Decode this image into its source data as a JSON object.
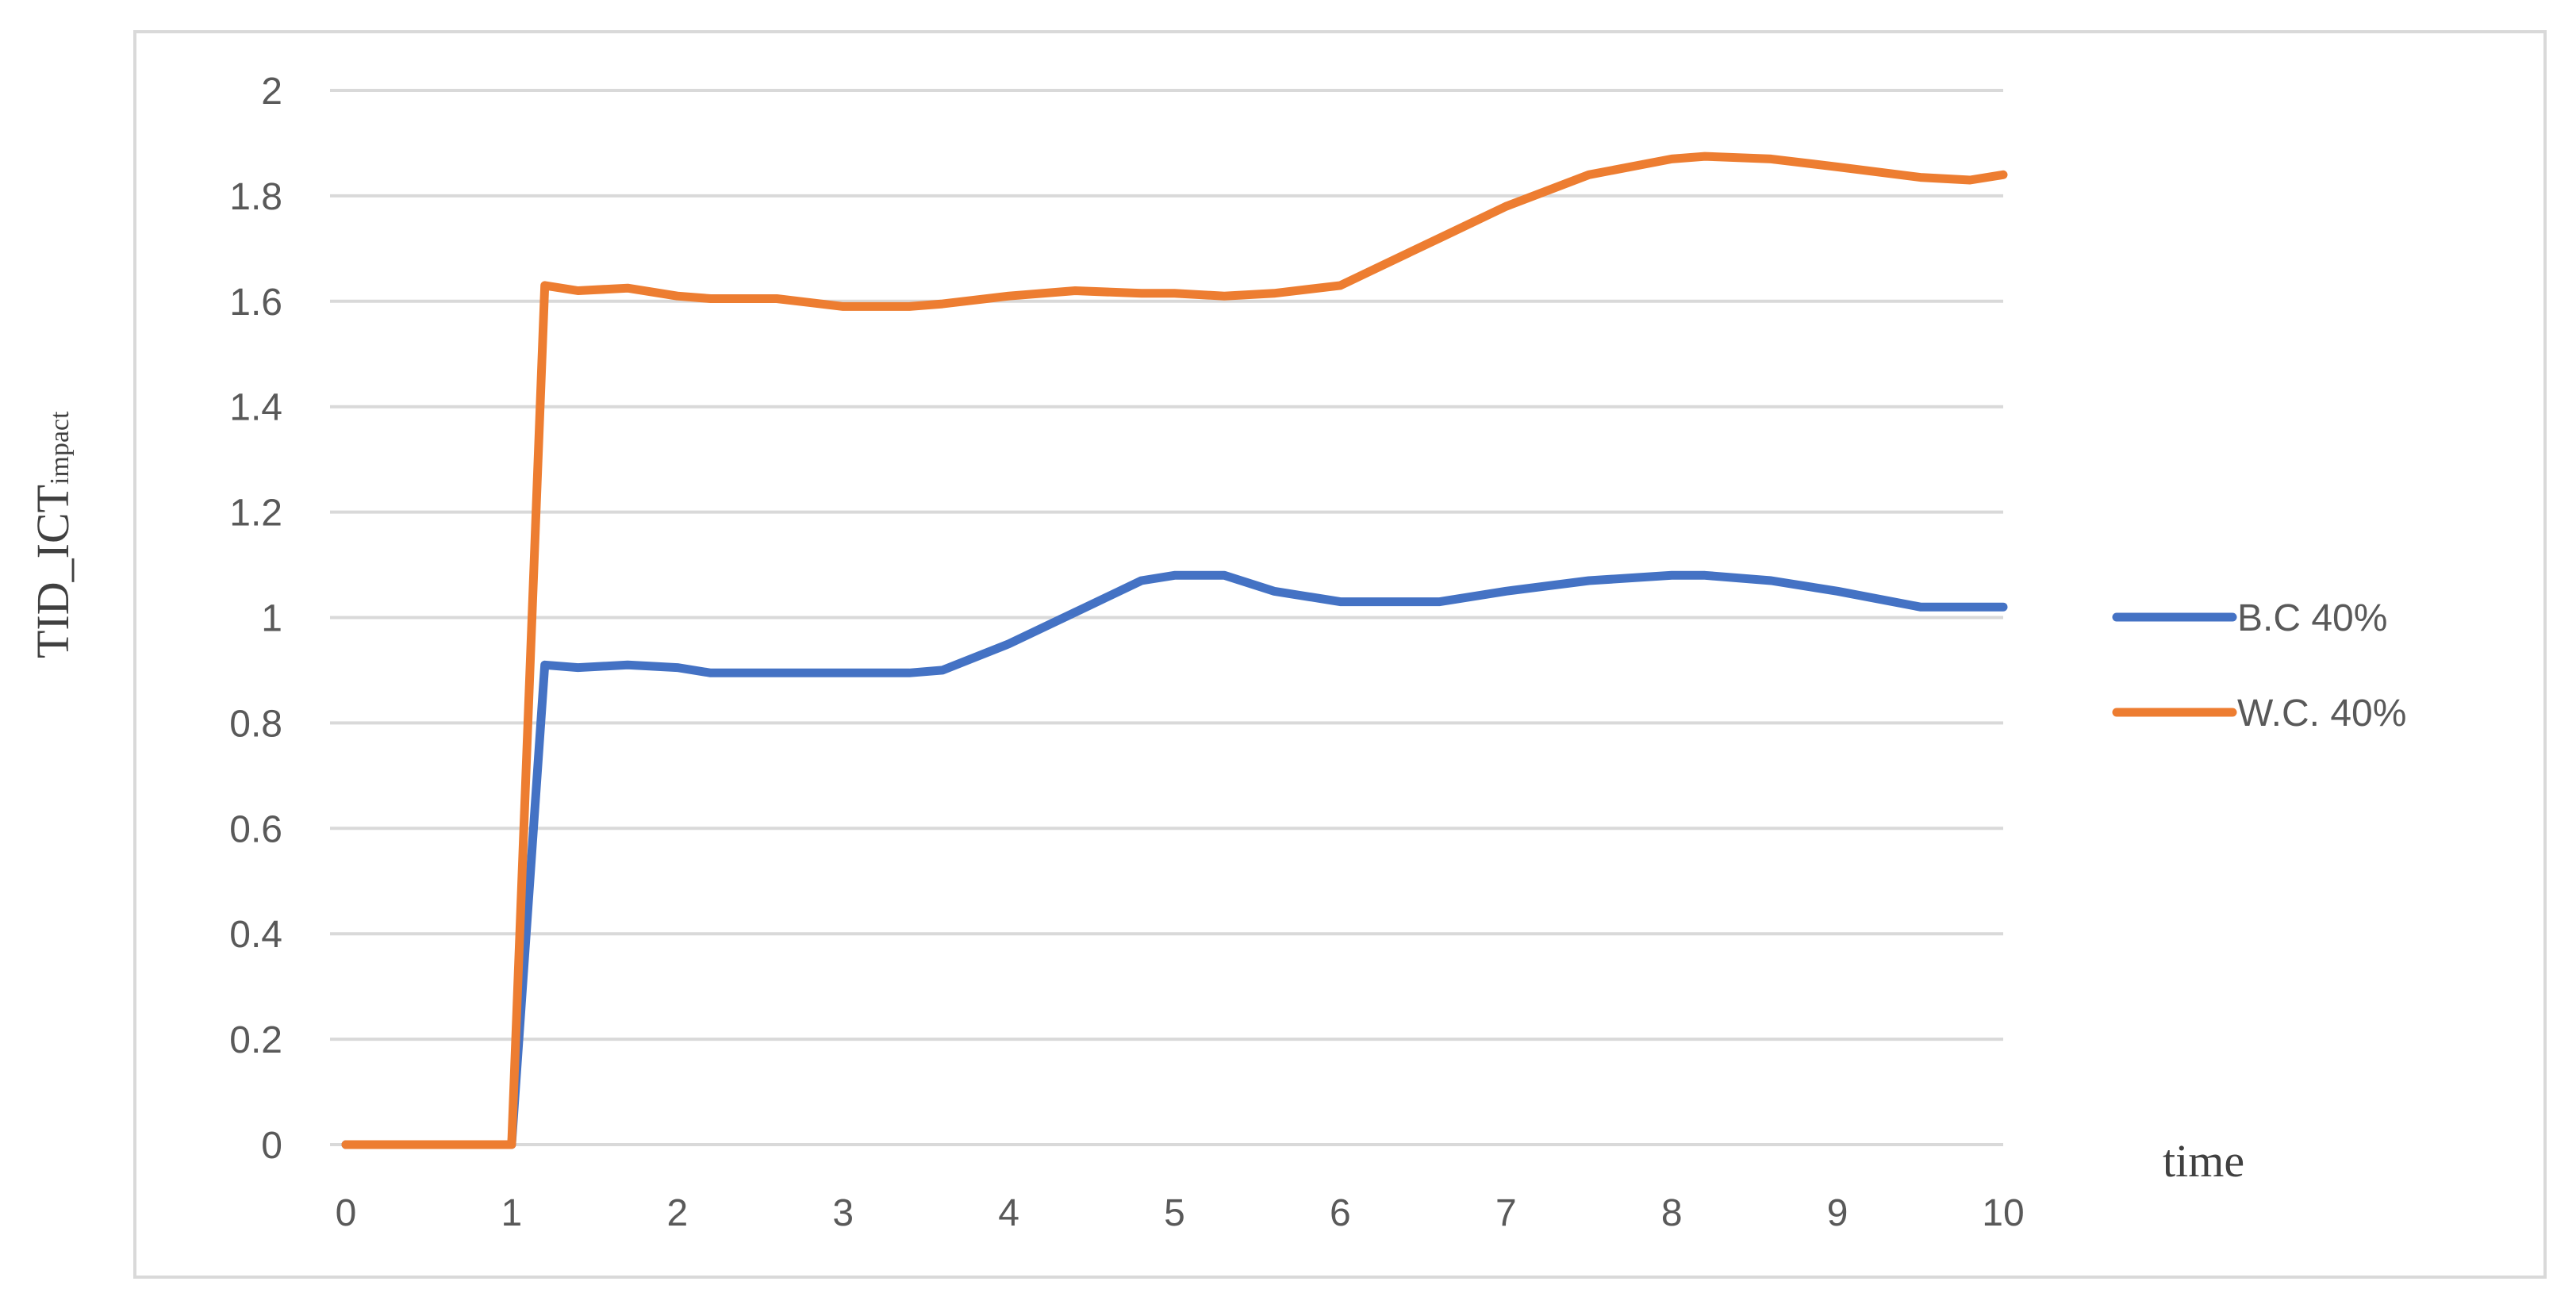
{
  "chart_data": {
    "type": "line",
    "title": "",
    "xlabel": "time",
    "ylabel": "TID_ICT",
    "ylabel_subscript": "impact",
    "xlim": [
      0,
      10
    ],
    "ylim": [
      0,
      2
    ],
    "x_ticks": [
      "0",
      "1",
      "2",
      "3",
      "4",
      "5",
      "6",
      "7",
      "8",
      "9",
      "10"
    ],
    "y_ticks": [
      "0",
      "0.2",
      "0.4",
      "0.6",
      "0.8",
      "1",
      "1.2",
      "1.4",
      "1.6",
      "1.8",
      "2"
    ],
    "grid": true,
    "legend_position": "right",
    "x": [
      0,
      1,
      1.2,
      1.4,
      1.7,
      2,
      2.2,
      2.6,
      3,
      3.4,
      3.6,
      4,
      4.4,
      4.8,
      5,
      5.3,
      5.6,
      6,
      6.2,
      6.6,
      7,
      7.5,
      8,
      8.2,
      8.6,
      9,
      9.5,
      9.8,
      10
    ],
    "series": [
      {
        "name": "B.C 40%",
        "color": "#4472c4",
        "values": [
          0,
          0,
          0.91,
          0.905,
          0.91,
          0.905,
          0.895,
          0.895,
          0.895,
          0.895,
          0.9,
          0.95,
          1.01,
          1.07,
          1.08,
          1.08,
          1.05,
          1.03,
          1.03,
          1.03,
          1.05,
          1.07,
          1.08,
          1.08,
          1.07,
          1.05,
          1.02,
          1.02,
          1.02
        ]
      },
      {
        "name": "W.C. 40%",
        "color": "#ed7d31",
        "values": [
          0,
          0,
          1.63,
          1.62,
          1.625,
          1.61,
          1.605,
          1.605,
          1.59,
          1.59,
          1.595,
          1.61,
          1.62,
          1.615,
          1.615,
          1.61,
          1.615,
          1.63,
          1.66,
          1.72,
          1.78,
          1.84,
          1.87,
          1.875,
          1.87,
          1.855,
          1.835,
          1.83,
          1.84
        ]
      }
    ]
  }
}
